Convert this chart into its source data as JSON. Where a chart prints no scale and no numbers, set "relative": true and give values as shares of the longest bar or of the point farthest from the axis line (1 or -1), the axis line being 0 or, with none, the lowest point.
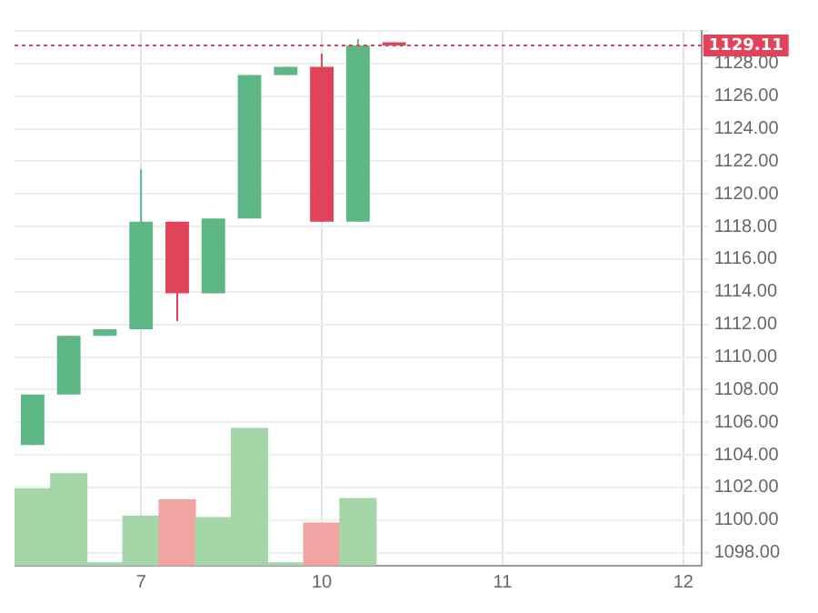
{
  "chart_data": [
    {
      "type": "candlestick",
      "categories": [
        null,
        null,
        null,
        "7",
        null,
        null,
        null,
        null,
        "10",
        null,
        null,
        null,
        null,
        "11",
        null,
        null,
        null,
        null,
        "12"
      ],
      "ohlc": [
        [
          1104.6,
          1107.7,
          1104.6,
          1107.7
        ],
        [
          1107.7,
          1111.3,
          1107.7,
          1111.3
        ],
        [
          1111.3,
          1111.7,
          1111.3,
          1111.7
        ],
        [
          1111.7,
          1121.5,
          1111.7,
          1118.3
        ],
        [
          1118.3,
          1118.3,
          1112.2,
          1113.9
        ],
        [
          1113.9,
          1118.5,
          1113.9,
          1118.5
        ],
        [
          1118.5,
          1127.3,
          1118.5,
          1127.3
        ],
        [
          1127.3,
          1127.8,
          1127.3,
          1127.8
        ],
        [
          1127.8,
          1128.6,
          1118.3,
          1118.3
        ],
        [
          1118.3,
          1129.5,
          1118.3,
          1129.11
        ],
        [
          1129.3,
          1129.3,
          1129.11,
          1129.11
        ],
        null,
        null,
        null,
        null,
        null,
        null,
        null,
        null
      ],
      "colors": [
        "#5cb784",
        "#5cb784",
        "#5cb784",
        "#5cb784",
        "#e0435a",
        "#5cb784",
        "#5cb784",
        "#5cb784",
        "#e0435a",
        "#5cb784",
        "#e0435a",
        null,
        null,
        null,
        null,
        null,
        null,
        null,
        null
      ],
      "ylim": [
        1097.2,
        1130
      ],
      "yticks": [
        {
          "value": 1098,
          "label": "1098.00"
        },
        {
          "value": 1100,
          "label": "1100.00"
        },
        {
          "value": 1102,
          "label": "1102.00"
        },
        {
          "value": 1104,
          "label": "1104.00"
        },
        {
          "value": 1106,
          "label": "1106.00"
        },
        {
          "value": 1108,
          "label": "1108.00"
        },
        {
          "value": 1110,
          "label": "1110.00"
        },
        {
          "value": 1112,
          "label": "1112.00"
        },
        {
          "value": 1114,
          "label": "1114.00"
        },
        {
          "value": 1116,
          "label": "1116.00"
        },
        {
          "value": 1118,
          "label": "1118.00"
        },
        {
          "value": 1120,
          "label": "1120.00"
        },
        {
          "value": 1122,
          "label": "1122.00"
        },
        {
          "value": 1124,
          "label": "1124.00"
        },
        {
          "value": 1126,
          "label": "1126.00"
        },
        {
          "value": 1128,
          "label": "1128.00"
        },
        {
          "value": 1130,
          "label": null
        }
      ],
      "ref_lines": [
        {
          "axis": "y",
          "value": 1129.11,
          "label": "1129.11",
          "color": "#e0435a",
          "line_style": "dotted"
        }
      ],
      "grid": true
    },
    {
      "type": "bar",
      "relative": true,
      "tick_labels": false,
      "categories": [
        null,
        null,
        null,
        null,
        null,
        null,
        null,
        null,
        null,
        null,
        null,
        null,
        null,
        null,
        null,
        null,
        null,
        null,
        null
      ],
      "values": [
        0.56,
        0.67,
        0.02,
        0.36,
        0.48,
        0.35,
        1,
        0.02,
        0.31,
        0.49,
        null,
        null,
        null,
        null,
        null,
        null,
        null,
        null,
        null
      ],
      "colors": [
        "#a5d6a7",
        "#a5d6a7",
        "#a5d6a7",
        "#a5d6a7",
        "#f4a3a3",
        "#a5d6a7",
        "#a5d6a7",
        "#a5d6a7",
        "#f4a3a3",
        "#a5d6a7",
        null,
        null,
        null,
        null,
        null,
        null,
        null,
        null,
        null
      ]
    }
  ]
}
